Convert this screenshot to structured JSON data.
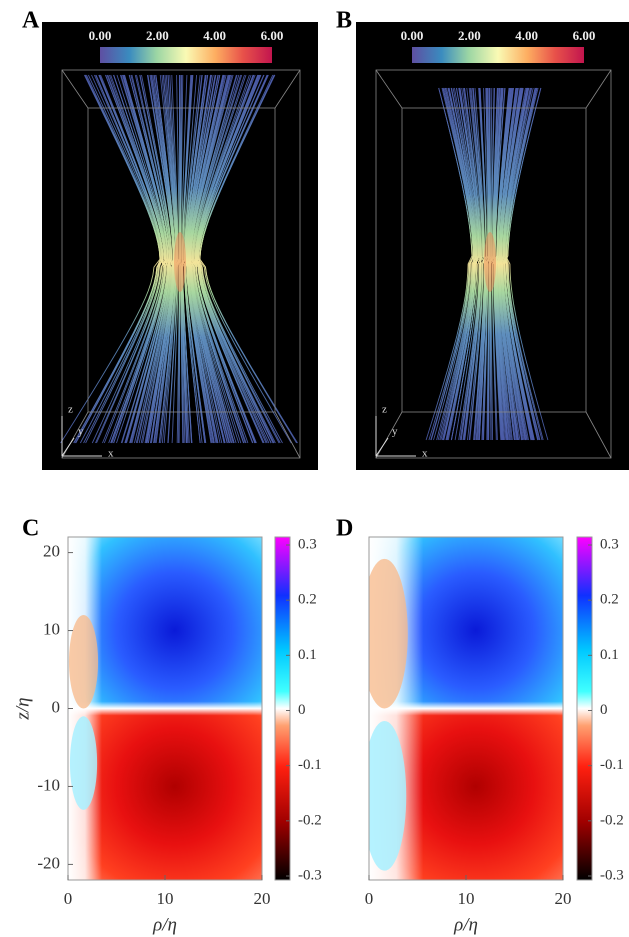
{
  "chart_data": [
    {
      "type": "streamlines",
      "label": "A",
      "axis_labels": [
        "x",
        "y",
        "z"
      ],
      "clim": [
        0,
        6
      ],
      "cticks": [
        {
          "value": 0,
          "label": "0.00"
        },
        {
          "value": 2,
          "label": "2.00"
        },
        {
          "value": 4,
          "label": "4.00"
        },
        {
          "value": 6,
          "label": "6.00"
        }
      ]
    },
    {
      "type": "streamlines",
      "label": "B",
      "axis_labels": [
        "x",
        "y",
        "z"
      ],
      "clim": [
        0,
        6
      ],
      "cticks": [
        {
          "value": 0,
          "label": "0.00"
        },
        {
          "value": 2,
          "label": "2.00"
        },
        {
          "value": 4,
          "label": "4.00"
        },
        {
          "value": 6,
          "label": "6.00"
        }
      ]
    },
    {
      "type": "heatmap",
      "label": "C",
      "xlabel": "ρ/η",
      "ylabel": "z/η",
      "xlim": [
        0,
        20
      ],
      "ylim": [
        -22,
        22
      ],
      "xticks": [
        0,
        10,
        20
      ],
      "yticks": [
        -20,
        -10,
        0,
        10,
        20
      ],
      "clim": [
        -0.3,
        0.3
      ],
      "cticks": [
        -0.3,
        -0.2,
        -0.1,
        0,
        0.1,
        0.2,
        0.3
      ]
    },
    {
      "type": "heatmap",
      "label": "D",
      "xlabel": "ρ/η",
      "xlim": [
        0,
        20
      ],
      "ylim": [
        -22,
        22
      ],
      "xticks": [
        0,
        10,
        20
      ],
      "clim": [
        -0.3,
        0.3
      ],
      "cticks": [
        -0.3,
        -0.2,
        -0.1,
        0,
        0.1,
        0.2,
        0.3
      ]
    }
  ]
}
